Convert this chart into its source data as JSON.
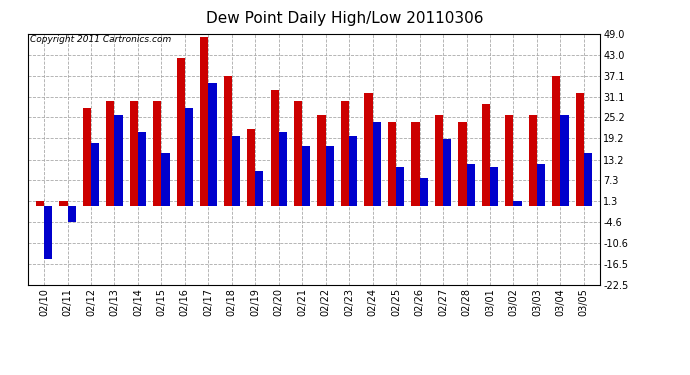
{
  "title": "Dew Point Daily High/Low 20110306",
  "copyright": "Copyright 2011 Cartronics.com",
  "dates": [
    "02/10",
    "02/11",
    "02/12",
    "02/13",
    "02/14",
    "02/15",
    "02/16",
    "02/17",
    "02/18",
    "02/19",
    "02/20",
    "02/21",
    "02/22",
    "02/23",
    "02/24",
    "02/25",
    "02/26",
    "02/27",
    "02/28",
    "03/01",
    "03/02",
    "03/03",
    "03/04",
    "03/05"
  ],
  "highs": [
    1.3,
    1.3,
    28.0,
    30.0,
    30.0,
    30.0,
    42.0,
    48.0,
    37.1,
    22.0,
    33.0,
    30.0,
    26.0,
    30.0,
    32.0,
    24.0,
    24.0,
    26.0,
    24.0,
    29.0,
    26.0,
    26.0,
    37.1,
    32.0
  ],
  "lows": [
    -15.0,
    -4.6,
    18.0,
    26.0,
    21.0,
    15.0,
    28.0,
    35.0,
    20.0,
    10.0,
    21.0,
    17.0,
    17.0,
    20.0,
    24.0,
    11.0,
    8.0,
    19.0,
    12.0,
    11.0,
    1.3,
    12.0,
    26.0,
    15.0
  ],
  "yticks": [
    49.0,
    43.0,
    37.1,
    31.1,
    25.2,
    19.2,
    13.2,
    7.3,
    1.3,
    -4.6,
    -10.6,
    -16.5,
    -22.5
  ],
  "ymin": -22.5,
  "ymax": 49.0,
  "bar_color_high": "#cc0000",
  "bar_color_low": "#0000cc",
  "background_color": "#ffffff",
  "grid_color": "#aaaaaa",
  "title_fontsize": 11,
  "copyright_fontsize": 6.5
}
